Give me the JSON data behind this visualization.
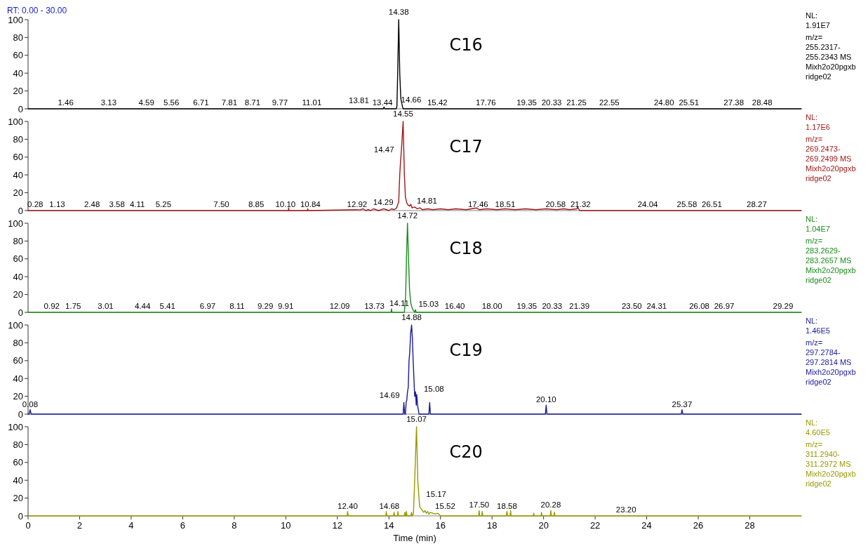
{
  "chart_data": [
    {
      "type": "line",
      "title": "C16",
      "subtitle": "RT: 0.00 - 30.00",
      "x": [
        0,
        13.78,
        13.81,
        13.84,
        14.28,
        14.31,
        14.34,
        14.38,
        14.42,
        14.46,
        14.5,
        14.53,
        14.56,
        30
      ],
      "series": [
        {
          "color": "#000000",
          "values": [
            0,
            0,
            2,
            0,
            0,
            3,
            40,
            100,
            40,
            12,
            6,
            2,
            0,
            0
          ]
        }
      ],
      "xlim": [
        0,
        30
      ],
      "ylim": [
        0,
        100
      ],
      "yticks": [
        0,
        20,
        40,
        60,
        80,
        100
      ],
      "tick_labels": "y",
      "annotations": [
        "NL:\n1.91E7\nm/z=\n255.2317-\n255.2343  MS\nMixh2o20pgxb\nridge02",
        {
          "text": "1.46",
          "x": 1.46,
          "y": 1
        },
        {
          "text": "3.13",
          "x": 3.13,
          "y": 1
        },
        {
          "text": "4.59",
          "x": 4.59,
          "y": 1
        },
        {
          "text": "5.56",
          "x": 5.56,
          "y": 1
        },
        {
          "text": "6.71",
          "x": 6.71,
          "y": 1
        },
        {
          "text": "7.81",
          "x": 7.81,
          "y": 1
        },
        {
          "text": "8.71",
          "x": 8.71,
          "y": 1
        },
        {
          "text": "9.77",
          "x": 9.77,
          "y": 1
        },
        {
          "text": "11.01",
          "x": 11.01,
          "y": 1
        },
        {
          "text": "13.44",
          "x": 13.44,
          "y": 1
        },
        {
          "text": "13.81",
          "x": 13.81,
          "y": 3
        },
        {
          "text": "14.38",
          "x": 14.38,
          "y": 100
        },
        {
          "text": "14.66",
          "x": 14.66,
          "y": 4
        },
        {
          "text": "15.42",
          "x": 15.42,
          "y": 1
        },
        {
          "text": "17.76",
          "x": 17.76,
          "y": 1
        },
        {
          "text": "19.35",
          "x": 19.35,
          "y": 1
        },
        {
          "text": "20.33",
          "x": 20.33,
          "y": 1
        },
        {
          "text": "21.25",
          "x": 21.25,
          "y": 1
        },
        {
          "text": "22.55",
          "x": 22.55,
          "y": 1
        },
        {
          "text": "24.80",
          "x": 24.8,
          "y": 1
        },
        {
          "text": "25.51",
          "x": 25.51,
          "y": 1
        },
        {
          "text": "27.38",
          "x": 27.38,
          "y": 1
        },
        {
          "text": "28.48",
          "x": 28.48,
          "y": 1
        }
      ]
    },
    {
      "type": "line",
      "title": "C17",
      "x": [
        0,
        10.1,
        10.11,
        10.12,
        10.84,
        10.85,
        10.86,
        12.9,
        13.0,
        13.1,
        13.2,
        13.3,
        13.4,
        13.5,
        13.6,
        13.7,
        13.8,
        13.9,
        14.0,
        14.1,
        14.2,
        14.3,
        14.38,
        14.42,
        14.45,
        14.47,
        14.5,
        14.55,
        14.6,
        14.64,
        14.7,
        14.75,
        14.8,
        14.85,
        14.9,
        15.0,
        15.1,
        15.2,
        15.3,
        15.5,
        15.7,
        16.0,
        16.3,
        16.6,
        17.0,
        17.4,
        17.5,
        17.8,
        18.2,
        18.5,
        18.9,
        19.3,
        19.7,
        20.1,
        20.5,
        20.8,
        21.0,
        21.3,
        21.32,
        21.4,
        30
      ],
      "series": [
        {
          "color": "#a01818",
          "values": [
            0,
            0,
            3,
            0,
            0,
            2,
            0,
            1,
            2,
            0,
            1,
            0,
            2,
            1,
            0,
            1,
            2,
            1,
            0,
            2,
            1,
            3,
            10,
            40,
            55,
            62,
            75,
            100,
            40,
            15,
            8,
            6,
            5,
            7,
            3,
            4,
            2,
            3,
            1,
            2,
            1,
            2,
            1,
            2,
            1,
            3,
            1,
            2,
            1,
            2,
            1,
            2,
            1,
            2,
            1,
            2,
            1,
            2,
            4,
            0,
            0
          ]
        }
      ],
      "xlim": [
        0,
        30
      ],
      "ylim": [
        0,
        100
      ],
      "yticks": [
        0,
        20,
        40,
        60,
        80,
        100
      ],
      "tick_labels": "y",
      "annotations": [
        "NL:\n1.17E6\nm/z=\n269.2473-\n269.2499  MS\nMixh2o20pgxb\nridge02",
        {
          "text": "0.28",
          "x": 0.28,
          "y": 1
        },
        {
          "text": "1.13",
          "x": 1.13,
          "y": 1
        },
        {
          "text": "2.48",
          "x": 2.48,
          "y": 1
        },
        {
          "text": "3.58",
          "x": 3.58,
          "y": 1
        },
        {
          "text": "4.11",
          "x": 4.11,
          "y": 1
        },
        {
          "text": "5.25",
          "x": 5.25,
          "y": 1
        },
        {
          "text": "7.50",
          "x": 7.5,
          "y": 1
        },
        {
          "text": "8.85",
          "x": 8.85,
          "y": 1
        },
        {
          "text": "10.10",
          "x": 10.1,
          "y": 1
        },
        {
          "text": "10.84",
          "x": 10.84,
          "y": 1
        },
        {
          "text": "12.92",
          "x": 12.92,
          "y": 1
        },
        {
          "text": "14.29",
          "x": 14.29,
          "y": 3
        },
        {
          "text": "14.47",
          "x": 14.47,
          "y": 62
        },
        {
          "text": "14.55",
          "x": 14.55,
          "y": 100
        },
        {
          "text": "14.81",
          "x": 14.81,
          "y": 5
        },
        {
          "text": "17.46",
          "x": 17.46,
          "y": 1
        },
        {
          "text": "18.51",
          "x": 18.51,
          "y": 1
        },
        {
          "text": "20.58",
          "x": 20.58,
          "y": 1
        },
        {
          "text": "21.32",
          "x": 21.32,
          "y": 1
        },
        {
          "text": "24.04",
          "x": 24.04,
          "y": 1
        },
        {
          "text": "25.58",
          "x": 25.58,
          "y": 1
        },
        {
          "text": "26.51",
          "x": 26.51,
          "y": 1
        },
        {
          "text": "28.27",
          "x": 28.27,
          "y": 1
        }
      ]
    },
    {
      "type": "line",
      "title": "C18",
      "x": [
        0,
        14.08,
        14.1,
        14.12,
        14.14,
        14.6,
        14.65,
        14.68,
        14.72,
        14.76,
        14.8,
        14.85,
        14.9,
        14.95,
        15.0,
        15.03,
        15.06,
        30
      ],
      "series": [
        {
          "color": "#1a8c1a",
          "values": [
            0,
            0,
            4,
            0,
            0,
            0,
            20,
            60,
            100,
            60,
            25,
            10,
            5,
            2,
            0,
            3,
            0,
            0
          ]
        }
      ],
      "xlim": [
        0,
        30
      ],
      "ylim": [
        0,
        100
      ],
      "yticks": [
        0,
        20,
        40,
        60,
        80,
        100
      ],
      "tick_labels": "y",
      "annotations": [
        "NL:\n1.04E7\nm/z=\n283.2629-\n283.2657  MS\nMixh2o20pgxb\nridge02",
        {
          "text": "0.92",
          "x": 0.92,
          "y": 1
        },
        {
          "text": "1.75",
          "x": 1.75,
          "y": 1
        },
        {
          "text": "3.01",
          "x": 3.01,
          "y": 1
        },
        {
          "text": "4.44",
          "x": 4.44,
          "y": 1
        },
        {
          "text": "5.41",
          "x": 5.41,
          "y": 1
        },
        {
          "text": "6.97",
          "x": 6.97,
          "y": 1
        },
        {
          "text": "8.11",
          "x": 8.11,
          "y": 1
        },
        {
          "text": "9.29",
          "x": 9.29,
          "y": 1
        },
        {
          "text": "9.91",
          "x": 9.91,
          "y": 1
        },
        {
          "text": "12.09",
          "x": 12.09,
          "y": 1
        },
        {
          "text": "13.73",
          "x": 13.73,
          "y": 1
        },
        {
          "text": "14.11",
          "x": 14.11,
          "y": 4
        },
        {
          "text": "14.72",
          "x": 14.72,
          "y": 100
        },
        {
          "text": "15.03",
          "x": 15.03,
          "y": 3
        },
        {
          "text": "16.40",
          "x": 16.4,
          "y": 1
        },
        {
          "text": "18.00",
          "x": 18,
          "y": 1
        },
        {
          "text": "19.35",
          "x": 19.35,
          "y": 1
        },
        {
          "text": "20.33",
          "x": 20.33,
          "y": 1
        },
        {
          "text": "21.39",
          "x": 21.39,
          "y": 1
        },
        {
          "text": "23.50",
          "x": 23.5,
          "y": 1
        },
        {
          "text": "24.31",
          "x": 24.31,
          "y": 1
        },
        {
          "text": "26.08",
          "x": 26.08,
          "y": 1
        },
        {
          "text": "26.97",
          "x": 26.97,
          "y": 1
        },
        {
          "text": "29.29",
          "x": 29.29,
          "y": 1
        }
      ]
    },
    {
      "type": "line",
      "title": "C19",
      "x": [
        0,
        0.04,
        0.08,
        0.12,
        14.55,
        14.58,
        14.61,
        14.64,
        14.67,
        14.69,
        14.72,
        14.75,
        14.78,
        14.81,
        14.84,
        14.88,
        14.91,
        14.94,
        14.97,
        15.0,
        15.03,
        15.06,
        15.08,
        15.11,
        15.14,
        15.17,
        15.55,
        15.58,
        15.61,
        20.07,
        20.1,
        20.13,
        25.34,
        25.37,
        25.4,
        30
      ],
      "series": [
        {
          "color": "#1a1a99",
          "values": [
            0,
            0,
            5,
            0,
            0,
            13,
            0,
            0,
            14,
            15,
            25,
            30,
            60,
            70,
            90,
            100,
            85,
            60,
            40,
            20,
            25,
            10,
            22,
            10,
            5,
            0,
            0,
            13,
            0,
            0,
            10,
            0,
            0,
            5,
            0,
            0
          ]
        }
      ],
      "xlim": [
        0,
        30
      ],
      "ylim": [
        0,
        100
      ],
      "yticks": [
        0,
        20,
        40,
        60,
        80,
        100
      ],
      "tick_labels": "y",
      "annotations": [
        "NL:\n1.46E5\nm/z=\n297.2784-\n297.2814  MS\nMixh2o20pgxb\nridge02",
        {
          "text": "0.08",
          "x": 0.08,
          "y": 5
        },
        {
          "text": "14.69",
          "x": 14.69,
          "y": 15
        },
        {
          "text": "14.88",
          "x": 14.88,
          "y": 100
        },
        {
          "text": "15.08",
          "x": 15.08,
          "y": 22
        },
        {
          "text": "20.10",
          "x": 20.1,
          "y": 10
        },
        {
          "text": "25.37",
          "x": 25.37,
          "y": 5
        }
      ]
    },
    {
      "type": "line",
      "title": "C20",
      "xlabel": "Time (min)",
      "x": [
        0,
        12.38,
        12.4,
        12.42,
        13.88,
        13.9,
        13.92,
        14.18,
        14.2,
        14.22,
        14.33,
        14.35,
        14.37,
        14.6,
        14.62,
        14.64,
        14.66,
        14.68,
        14.7,
        14.85,
        14.88,
        14.9,
        14.95,
        15.0,
        15.07,
        15.12,
        15.17,
        15.2,
        15.25,
        15.3,
        15.35,
        15.4,
        15.45,
        15.5,
        15.55,
        15.6,
        15.7,
        15.8,
        15.9,
        16.0,
        17.48,
        17.5,
        17.52,
        17.6,
        17.62,
        17.64,
        18.55,
        18.58,
        18.61,
        18.7,
        18.72,
        18.74,
        19.6,
        19.62,
        19.64,
        19.9,
        19.92,
        19.94,
        20.26,
        20.28,
        20.3,
        20.4,
        20.42,
        20.44,
        30
      ],
      "series": [
        {
          "color": "#999900",
          "values": [
            0,
            0,
            5,
            0,
            0,
            5,
            0,
            0,
            4,
            0,
            0,
            5,
            0,
            0,
            4,
            0,
            0,
            5,
            0,
            0,
            4,
            0,
            2,
            40,
            100,
            40,
            18,
            10,
            8,
            6,
            4,
            6,
            3,
            5,
            2,
            4,
            3,
            2,
            3,
            0,
            0,
            6,
            0,
            0,
            5,
            0,
            0,
            5,
            0,
            0,
            6,
            0,
            0,
            3,
            0,
            0,
            4,
            0,
            0,
            6,
            0,
            0,
            4,
            0,
            0
          ]
        }
      ],
      "xlim": [
        0,
        30
      ],
      "xticks": [
        0,
        2,
        4,
        6,
        8,
        10,
        12,
        14,
        16,
        18,
        20,
        22,
        24,
        26,
        28
      ],
      "ylim": [
        0,
        100
      ],
      "yticks": [
        0,
        20,
        40,
        60,
        80,
        100
      ],
      "annotations": [
        "NL:\n4.60E5\nm/z=\n311.2940-\n311.2972  MS\nMixh2o20pgxb\nridge02",
        {
          "text": "12.40",
          "x": 12.4,
          "y": 5
        },
        {
          "text": "14.68",
          "x": 14.68,
          "y": 5
        },
        {
          "text": "15.07",
          "x": 15.07,
          "y": 100
        },
        {
          "text": "15.17",
          "x": 15.17,
          "y": 18
        },
        {
          "text": "15.52",
          "x": 15.52,
          "y": 5
        },
        {
          "text": "17.50",
          "x": 17.5,
          "y": 6
        },
        {
          "text": "18.58",
          "x": 18.58,
          "y": 5
        },
        {
          "text": "20.28",
          "x": 20.28,
          "y": 6
        },
        {
          "text": "23.20",
          "x": 23.2,
          "y": 1
        }
      ]
    }
  ]
}
